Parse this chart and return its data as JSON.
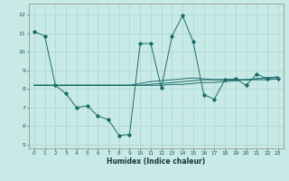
{
  "xlabel": "Humidex (Indice chaleur)",
  "xlim": [
    -0.5,
    23.5
  ],
  "ylim": [
    4.8,
    12.6
  ],
  "yticks": [
    5,
    6,
    7,
    8,
    9,
    10,
    11,
    12
  ],
  "xticks": [
    0,
    1,
    2,
    3,
    4,
    5,
    6,
    7,
    8,
    9,
    10,
    11,
    12,
    13,
    14,
    15,
    16,
    17,
    18,
    19,
    20,
    21,
    22,
    23
  ],
  "bg_color": "#c8eae6",
  "grid_color": "#aad4d0",
  "line_color": "#1a6b6b",
  "series": [
    [
      11.1,
      10.85,
      8.2,
      7.75,
      7.0,
      7.1,
      6.55,
      6.35,
      5.5,
      5.55,
      10.45,
      10.45,
      8.05,
      10.85,
      11.95,
      10.55,
      7.7,
      7.45,
      8.5,
      8.55,
      8.2,
      8.8,
      8.55,
      8.55
    ],
    [
      8.2,
      8.2,
      8.2,
      8.2,
      8.2,
      8.2,
      8.2,
      8.2,
      8.2,
      8.2,
      8.2,
      8.2,
      8.2,
      8.25,
      8.25,
      8.3,
      8.35,
      8.35,
      8.4,
      8.45,
      8.5,
      8.55,
      8.6,
      8.65
    ],
    [
      8.2,
      8.2,
      8.2,
      8.2,
      8.2,
      8.2,
      8.2,
      8.2,
      8.2,
      8.2,
      8.2,
      8.25,
      8.3,
      8.35,
      8.4,
      8.45,
      8.5,
      8.5,
      8.5,
      8.5,
      8.5,
      8.5,
      8.5,
      8.55
    ],
    [
      8.2,
      8.2,
      8.2,
      8.2,
      8.2,
      8.2,
      8.2,
      8.2,
      8.2,
      8.2,
      8.3,
      8.4,
      8.45,
      8.5,
      8.55,
      8.6,
      8.55,
      8.5,
      8.5,
      8.5,
      8.5,
      8.55,
      8.6,
      8.65
    ]
  ]
}
